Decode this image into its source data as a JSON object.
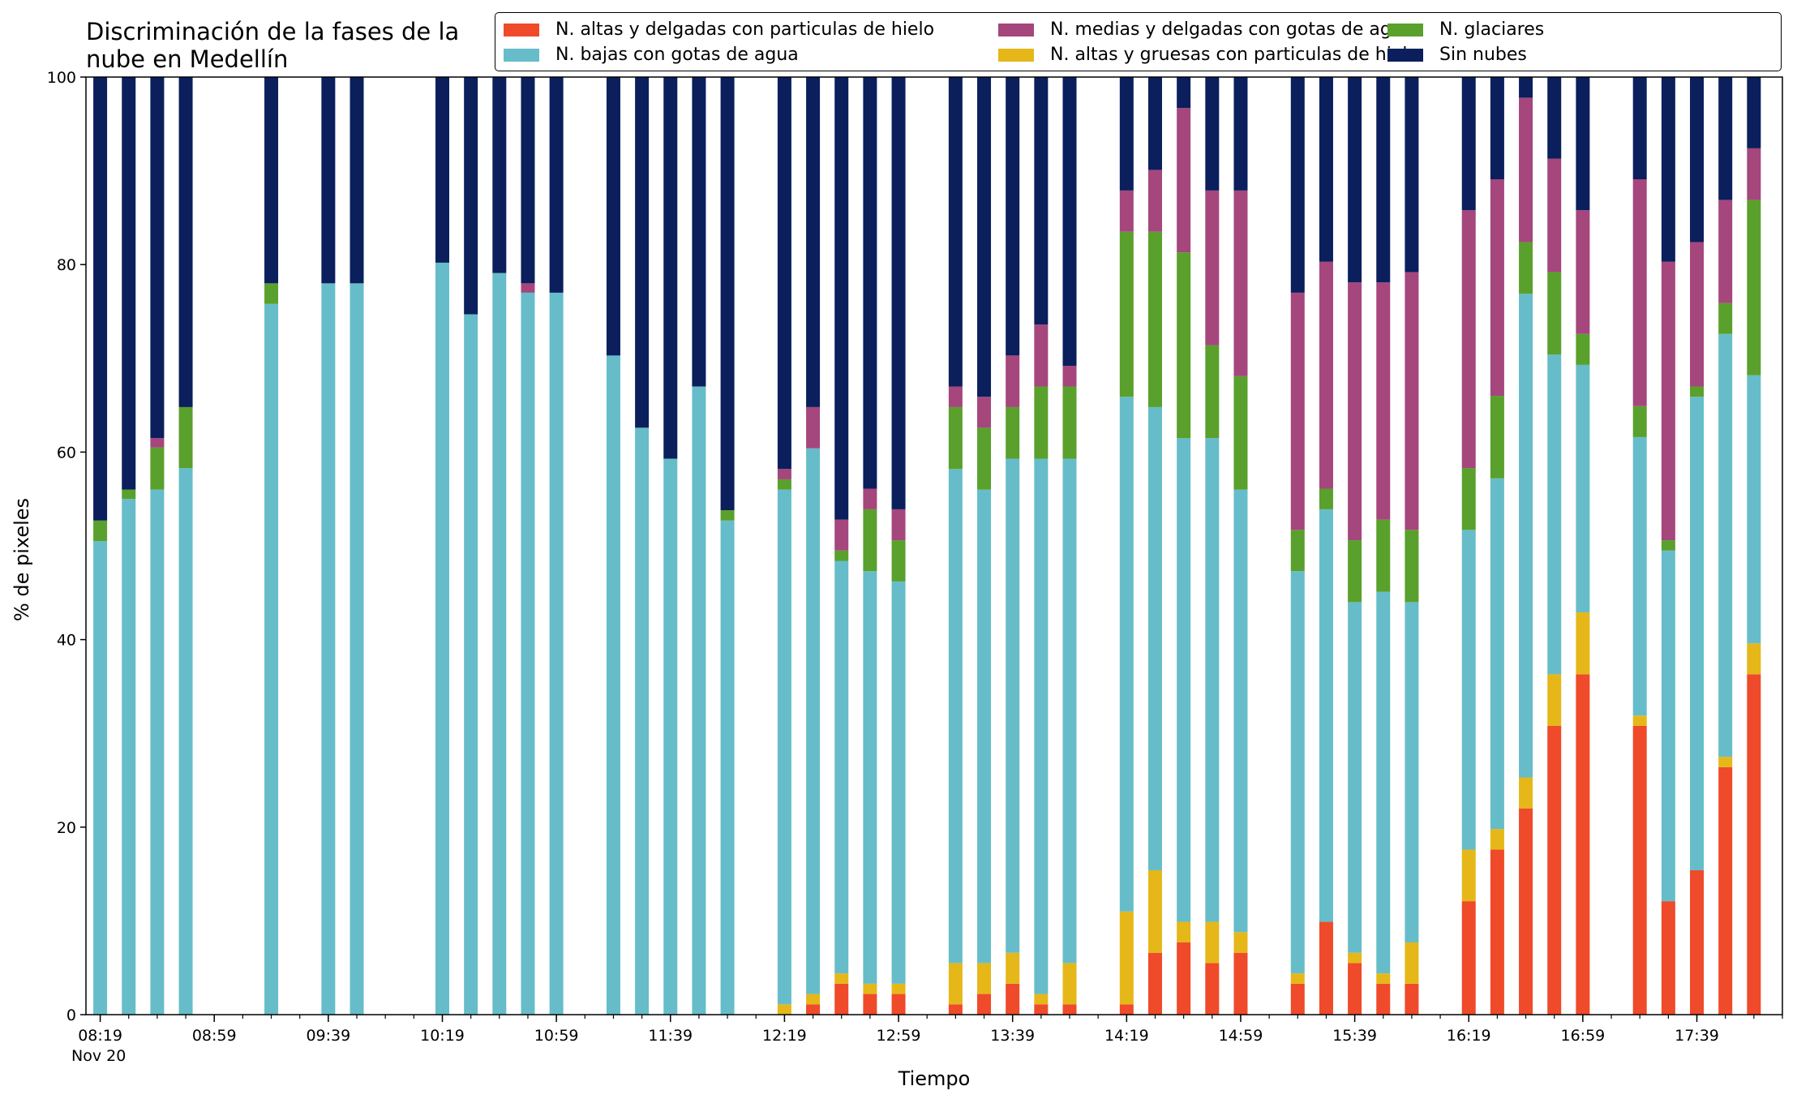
{
  "chart_data": {
    "type": "stacked-bar",
    "title": "Discriminación de la fases de la nube en Medellín",
    "title_lines": [
      "Discriminación de la fases de la",
      "nube en Medellín"
    ],
    "xlabel": "Tiempo",
    "ylabel": "% de pixeles",
    "ylim": [
      0,
      100
    ],
    "yticks": [
      0,
      20,
      40,
      60,
      80,
      100
    ],
    "xlim": [
      "08:14",
      "18:09"
    ],
    "xtick_labels": [
      "08:19",
      "08:59",
      "09:39",
      "10:19",
      "10:59",
      "11:39",
      "12:19",
      "12:59",
      "13:39",
      "14:19",
      "14:59",
      "15:39",
      "16:19",
      "16:59",
      "17:39"
    ],
    "date_label": "Nov 20",
    "minor_tick_step_minutes": 10,
    "legend_position": "top-right",
    "series": [
      {
        "name": "N. altas y delgadas con particulas de hielo",
        "color": "#ef4a2a",
        "key": "a"
      },
      {
        "name": "N. altas y gruesas con particulas de hielo",
        "color": "#e5b719",
        "key": "b"
      },
      {
        "name": "N. bajas con gotas de agua",
        "color": "#66bdc9",
        "key": "c"
      },
      {
        "name": "N. glaciares",
        "color": "#5aa02c",
        "key": "d"
      },
      {
        "name": "N. medias y delgadas con gotas de agua",
        "color": "#a5467d",
        "key": "e"
      },
      {
        "name": "Sin nubes",
        "color": "#0a1f5c",
        "key": "f"
      }
    ],
    "legend_order": [
      0,
      2,
      4,
      1,
      3,
      5
    ],
    "bars": [
      {
        "time": "08:19",
        "a": 0,
        "b": 0,
        "c": 50.5,
        "d": 2.2,
        "e": 0,
        "f": 47.3
      },
      {
        "time": "08:29",
        "a": 0,
        "b": 0,
        "c": 55.0,
        "d": 1.0,
        "e": 0,
        "f": 44.0
      },
      {
        "time": "08:39",
        "a": 0,
        "b": 0,
        "c": 56.0,
        "d": 4.5,
        "e": 1.0,
        "f": 38.5
      },
      {
        "time": "08:49",
        "a": 0,
        "b": 0,
        "c": 58.3,
        "d": 6.5,
        "e": 0,
        "f": 35.2
      },
      {
        "time": "09:19",
        "a": 0,
        "b": 0,
        "c": 75.8,
        "d": 2.2,
        "e": 0,
        "f": 22.0
      },
      {
        "time": "09:39",
        "a": 0,
        "b": 0,
        "c": 78.0,
        "d": 0,
        "e": 0,
        "f": 22.0
      },
      {
        "time": "09:49",
        "a": 0,
        "b": 0,
        "c": 78.0,
        "d": 0,
        "e": 0,
        "f": 22.0
      },
      {
        "time": "10:19",
        "a": 0,
        "b": 0,
        "c": 80.2,
        "d": 0,
        "e": 0,
        "f": 19.8
      },
      {
        "time": "10:29",
        "a": 0,
        "b": 0,
        "c": 74.7,
        "d": 0,
        "e": 0,
        "f": 25.3
      },
      {
        "time": "10:39",
        "a": 0,
        "b": 0,
        "c": 79.1,
        "d": 0,
        "e": 0,
        "f": 20.9
      },
      {
        "time": "10:49",
        "a": 0,
        "b": 0,
        "c": 77.0,
        "d": 0,
        "e": 1.0,
        "f": 22.0
      },
      {
        "time": "10:59",
        "a": 0,
        "b": 0,
        "c": 77.0,
        "d": 0,
        "e": 0,
        "f": 23.0
      },
      {
        "time": "11:19",
        "a": 0,
        "b": 0,
        "c": 70.3,
        "d": 0,
        "e": 0,
        "f": 29.7
      },
      {
        "time": "11:29",
        "a": 0,
        "b": 0,
        "c": 62.6,
        "d": 0,
        "e": 0,
        "f": 37.4
      },
      {
        "time": "11:39",
        "a": 0,
        "b": 0,
        "c": 59.3,
        "d": 0,
        "e": 0,
        "f": 40.7
      },
      {
        "time": "11:49",
        "a": 0,
        "b": 0,
        "c": 67.0,
        "d": 0,
        "e": 0,
        "f": 33.0
      },
      {
        "time": "11:59",
        "a": 0,
        "b": 0,
        "c": 52.7,
        "d": 1.1,
        "e": 0,
        "f": 46.2
      },
      {
        "time": "12:19",
        "a": 0,
        "b": 1.1,
        "c": 54.9,
        "d": 1.1,
        "e": 1.1,
        "f": 41.8
      },
      {
        "time": "12:29",
        "a": 1.1,
        "b": 1.1,
        "c": 58.2,
        "d": 0,
        "e": 4.4,
        "f": 35.2
      },
      {
        "time": "12:39",
        "a": 3.3,
        "b": 1.1,
        "c": 44.0,
        "d": 1.1,
        "e": 3.3,
        "f": 47.2
      },
      {
        "time": "12:49",
        "a": 2.2,
        "b": 1.1,
        "c": 44.0,
        "d": 6.6,
        "e": 2.2,
        "f": 43.9
      },
      {
        "time": "12:59",
        "a": 2.2,
        "b": 1.1,
        "c": 42.9,
        "d": 4.4,
        "e": 3.3,
        "f": 46.1
      },
      {
        "time": "13:19",
        "a": 1.1,
        "b": 4.4,
        "c": 52.7,
        "d": 6.6,
        "e": 2.2,
        "f": 33.0
      },
      {
        "time": "13:29",
        "a": 2.2,
        "b": 3.3,
        "c": 50.5,
        "d": 6.6,
        "e": 3.3,
        "f": 34.1
      },
      {
        "time": "13:39",
        "a": 3.3,
        "b": 3.3,
        "c": 52.7,
        "d": 5.5,
        "e": 5.5,
        "f": 29.7
      },
      {
        "time": "13:49",
        "a": 1.1,
        "b": 1.1,
        "c": 57.1,
        "d": 7.7,
        "e": 6.6,
        "f": 26.4
      },
      {
        "time": "13:59",
        "a": 1.1,
        "b": 4.4,
        "c": 53.8,
        "d": 7.7,
        "e": 2.2,
        "f": 30.8
      },
      {
        "time": "14:19",
        "a": 1.1,
        "b": 9.9,
        "c": 54.9,
        "d": 17.6,
        "e": 4.4,
        "f": 12.1
      },
      {
        "time": "14:29",
        "a": 6.6,
        "b": 8.8,
        "c": 49.4,
        "d": 18.7,
        "e": 6.6,
        "f": 9.9
      },
      {
        "time": "14:39",
        "a": 7.7,
        "b": 2.2,
        "c": 51.6,
        "d": 19.8,
        "e": 15.4,
        "f": 3.3
      },
      {
        "time": "14:49",
        "a": 5.5,
        "b": 4.4,
        "c": 51.6,
        "d": 9.9,
        "e": 16.5,
        "f": 12.1
      },
      {
        "time": "14:59",
        "a": 6.6,
        "b": 2.2,
        "c": 47.2,
        "d": 12.1,
        "e": 19.8,
        "f": 12.1
      },
      {
        "time": "15:19",
        "a": 3.3,
        "b": 1.1,
        "c": 42.9,
        "d": 4.4,
        "e": 25.3,
        "f": 23.0
      },
      {
        "time": "15:29",
        "a": 9.9,
        "b": 0,
        "c": 44.0,
        "d": 2.2,
        "e": 24.2,
        "f": 19.7
      },
      {
        "time": "15:39",
        "a": 5.5,
        "b": 1.1,
        "c": 37.4,
        "d": 6.6,
        "e": 27.5,
        "f": 21.9
      },
      {
        "time": "15:49",
        "a": 3.3,
        "b": 1.1,
        "c": 40.7,
        "d": 7.7,
        "e": 25.3,
        "f": 21.9
      },
      {
        "time": "15:59",
        "a": 3.3,
        "b": 4.4,
        "c": 36.3,
        "d": 7.7,
        "e": 27.5,
        "f": 20.8
      },
      {
        "time": "16:19",
        "a": 12.1,
        "b": 5.5,
        "c": 34.1,
        "d": 6.6,
        "e": 27.5,
        "f": 14.2
      },
      {
        "time": "16:29",
        "a": 17.6,
        "b": 2.2,
        "c": 37.4,
        "d": 8.8,
        "e": 23.1,
        "f": 10.9
      },
      {
        "time": "16:39",
        "a": 22.0,
        "b": 3.3,
        "c": 51.6,
        "d": 5.5,
        "e": 15.4,
        "f": 2.2
      },
      {
        "time": "16:49",
        "a": 30.8,
        "b": 5.5,
        "c": 34.1,
        "d": 8.8,
        "e": 12.1,
        "f": 8.7
      },
      {
        "time": "16:59",
        "a": 36.3,
        "b": 6.6,
        "c": 26.4,
        "d": 3.3,
        "e": 13.2,
        "f": 14.2
      },
      {
        "time": "17:19",
        "a": 30.8,
        "b": 1.1,
        "c": 29.7,
        "d": 3.3,
        "e": 24.2,
        "f": 10.9
      },
      {
        "time": "17:29",
        "a": 12.1,
        "b": 0,
        "c": 37.4,
        "d": 1.1,
        "e": 29.7,
        "f": 19.7
      },
      {
        "time": "17:39",
        "a": 15.4,
        "b": 0,
        "c": 50.5,
        "d": 1.1,
        "e": 15.4,
        "f": 17.6
      },
      {
        "time": "17:49",
        "a": 26.4,
        "b": 1.1,
        "c": 45.1,
        "d": 3.3,
        "e": 11.0,
        "f": 13.1
      },
      {
        "time": "17:59",
        "a": 36.3,
        "b": 3.3,
        "c": 28.6,
        "d": 18.7,
        "e": 5.5,
        "f": 7.6
      }
    ]
  }
}
